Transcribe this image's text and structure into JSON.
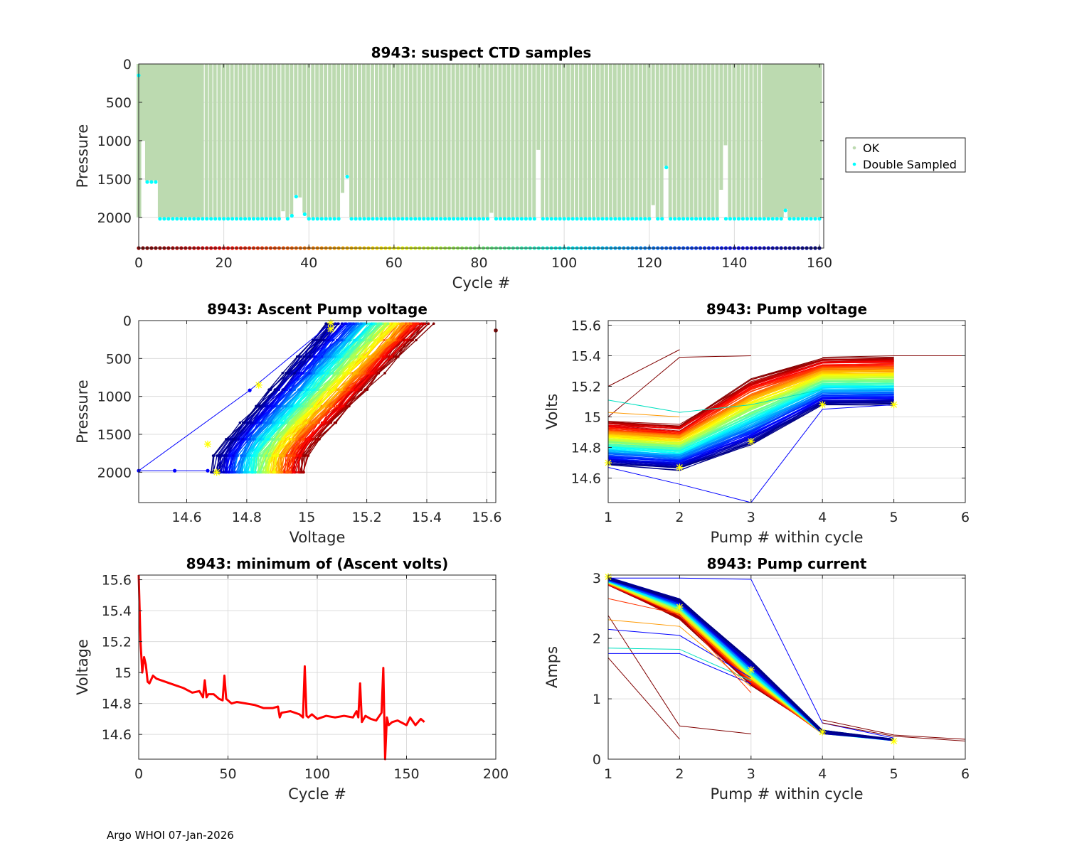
{
  "footer": "Argo WHOI 07-Jan-2026",
  "chart_data": [
    {
      "id": "ctd",
      "type": "scatter",
      "title": "8943: suspect CTD samples",
      "xlabel": "Cycle #",
      "ylabel": "Pressure",
      "xlim": [
        0,
        161
      ],
      "ylim": [
        2400,
        0
      ],
      "y_reversed": true,
      "xticks": [
        0,
        20,
        40,
        60,
        80,
        100,
        120,
        140,
        160
      ],
      "yticks": [
        0,
        500,
        1000,
        1500,
        2000
      ],
      "grid": true,
      "legend": {
        "placement": "outside-right",
        "entries": [
          {
            "label": "OK",
            "color": "#bcdab0"
          },
          {
            "label": "Double Sampled",
            "color": "#00ffff"
          }
        ]
      },
      "ok_color": "#bcdab0",
      "double_color": "#00ffff",
      "n_cycles": 161,
      "profile_max_pressure_default": 2000,
      "profile_exceptions": {
        "1": 1000,
        "2": 1520,
        "3": 1520,
        "4": 1520,
        "34": 1920,
        "35": 2000,
        "36": 1960,
        "37": 1710,
        "38": 1740,
        "39": 1940,
        "48": 1680,
        "49": 1450,
        "83": 1940,
        "94": 1120,
        "121": 1840,
        "124": 1330,
        "137": 1640,
        "138": 1060,
        "152": 1890
      },
      "double_sampled_exceptions": {
        "0": 130,
        "1": null,
        "2": 1520,
        "3": 1520,
        "4": 1520,
        "34": null,
        "36": 1960,
        "37": 1710,
        "38": null,
        "48": null,
        "49": 1450,
        "83": null,
        "94": null,
        "121": null,
        "124": 1330,
        "137": null,
        "138": 2000
      }
    },
    {
      "id": "ascent",
      "type": "line",
      "title": "8943: Ascent Pump voltage",
      "xlabel": "Voltage",
      "ylabel": "Pressure",
      "xlim": [
        14.44,
        15.63
      ],
      "ylim": [
        2400,
        0
      ],
      "y_reversed": true,
      "xticks": [
        14.6,
        14.8,
        15,
        15.2,
        15.4,
        15.6
      ],
      "yticks": [
        0,
        500,
        1000,
        1500,
        2000
      ],
      "grid": true,
      "colormap": "jet (cycle-coded, early=dark red, late=dark blue)",
      "note": "One line per cycle from ~2000 dbar to surface; voltage decreases with cycle number",
      "envelope": {
        "deep_voltage_range": [
          14.67,
          14.98
        ],
        "surface_voltage_range": [
          15.05,
          15.44
        ]
      },
      "outliers": [
        {
          "voltage": 15.63,
          "pressure": 130
        },
        {
          "voltage": 14.44,
          "pressure": 1980
        }
      ]
    },
    {
      "id": "pumpv",
      "type": "line",
      "title": "8943: Pump voltage",
      "xlabel": "Pump # within cycle",
      "ylabel": "Volts",
      "xlim": [
        1,
        6
      ],
      "ylim": [
        14.44,
        15.63
      ],
      "xticks": [
        1,
        2,
        3,
        4,
        5,
        6
      ],
      "yticks": [
        14.6,
        14.8,
        15,
        15.2,
        15.4,
        15.6
      ],
      "grid": true,
      "colormap": "jet (cycle-coded)",
      "typical_range_by_pump": {
        "1": [
          14.68,
          14.98
        ],
        "2": [
          14.65,
          15.0
        ],
        "3": [
          14.8,
          15.25
        ],
        "4": [
          15.07,
          15.38
        ],
        "5": [
          15.08,
          15.4
        ]
      },
      "highlight_points": [
        {
          "x": 1,
          "y": 14.7
        },
        {
          "x": 2,
          "y": 14.67
        },
        {
          "x": 3,
          "y": 14.84
        },
        {
          "x": 4,
          "y": 15.08
        },
        {
          "x": 5,
          "y": 15.08
        }
      ]
    },
    {
      "id": "minv",
      "type": "line",
      "title": "8943: minimum of (Ascent volts)",
      "xlabel": "Cycle #",
      "ylabel": "Voltage",
      "xlim": [
        0,
        200
      ],
      "ylim": [
        14.44,
        15.63
      ],
      "xticks": [
        0,
        50,
        100,
        150,
        200
      ],
      "yticks": [
        14.6,
        14.8,
        15,
        15.2,
        15.4,
        15.6
      ],
      "grid": true,
      "color": "#ff0000",
      "x": [
        0,
        1,
        2,
        3,
        4,
        5,
        6,
        8,
        10,
        15,
        20,
        25,
        30,
        34,
        36,
        37,
        38,
        39,
        42,
        45,
        47,
        48,
        49,
        50,
        52,
        55,
        60,
        65,
        70,
        75,
        78,
        79,
        80,
        85,
        90,
        92,
        93,
        94,
        95,
        97,
        100,
        105,
        110,
        115,
        120,
        122,
        123,
        124,
        125,
        127,
        130,
        133,
        136,
        137,
        138,
        139,
        140,
        142,
        145,
        150,
        152,
        155,
        158,
        160
      ],
      "values": [
        15.63,
        15.2,
        15.0,
        15.1,
        15.05,
        14.94,
        14.93,
        14.98,
        14.96,
        14.94,
        14.92,
        14.9,
        14.87,
        14.88,
        14.84,
        14.95,
        14.84,
        14.86,
        14.86,
        14.83,
        14.82,
        14.98,
        14.83,
        14.82,
        14.8,
        14.81,
        14.8,
        14.79,
        14.77,
        14.77,
        14.78,
        14.71,
        14.74,
        14.75,
        14.73,
        14.71,
        15.04,
        14.72,
        14.71,
        14.73,
        14.7,
        14.72,
        14.71,
        14.72,
        14.71,
        14.75,
        14.71,
        14.93,
        14.68,
        14.72,
        14.7,
        14.69,
        14.74,
        15.03,
        14.44,
        14.71,
        14.66,
        14.68,
        14.69,
        14.66,
        14.71,
        14.66,
        14.7,
        14.68
      ]
    },
    {
      "id": "pumpc",
      "type": "line",
      "title": "8943: Pump current",
      "xlabel": "Pump # within cycle",
      "ylabel": "Amps",
      "xlim": [
        1,
        6
      ],
      "ylim": [
        0,
        3.05
      ],
      "xticks": [
        1,
        2,
        3,
        4,
        5,
        6
      ],
      "yticks": [
        0,
        1,
        2,
        3
      ],
      "grid": true,
      "colormap": "jet (cycle-coded)",
      "typical_values_by_pump": {
        "1": 3.0,
        "2": 2.55,
        "3": 1.45,
        "4": 0.48,
        "5": 0.32
      },
      "highlight_points": [
        {
          "x": 1,
          "y": 3.02
        },
        {
          "x": 2,
          "y": 2.52
        },
        {
          "x": 3,
          "y": 1.48
        },
        {
          "x": 4,
          "y": 0.45
        },
        {
          "x": 5,
          "y": 0.3
        }
      ]
    }
  ]
}
